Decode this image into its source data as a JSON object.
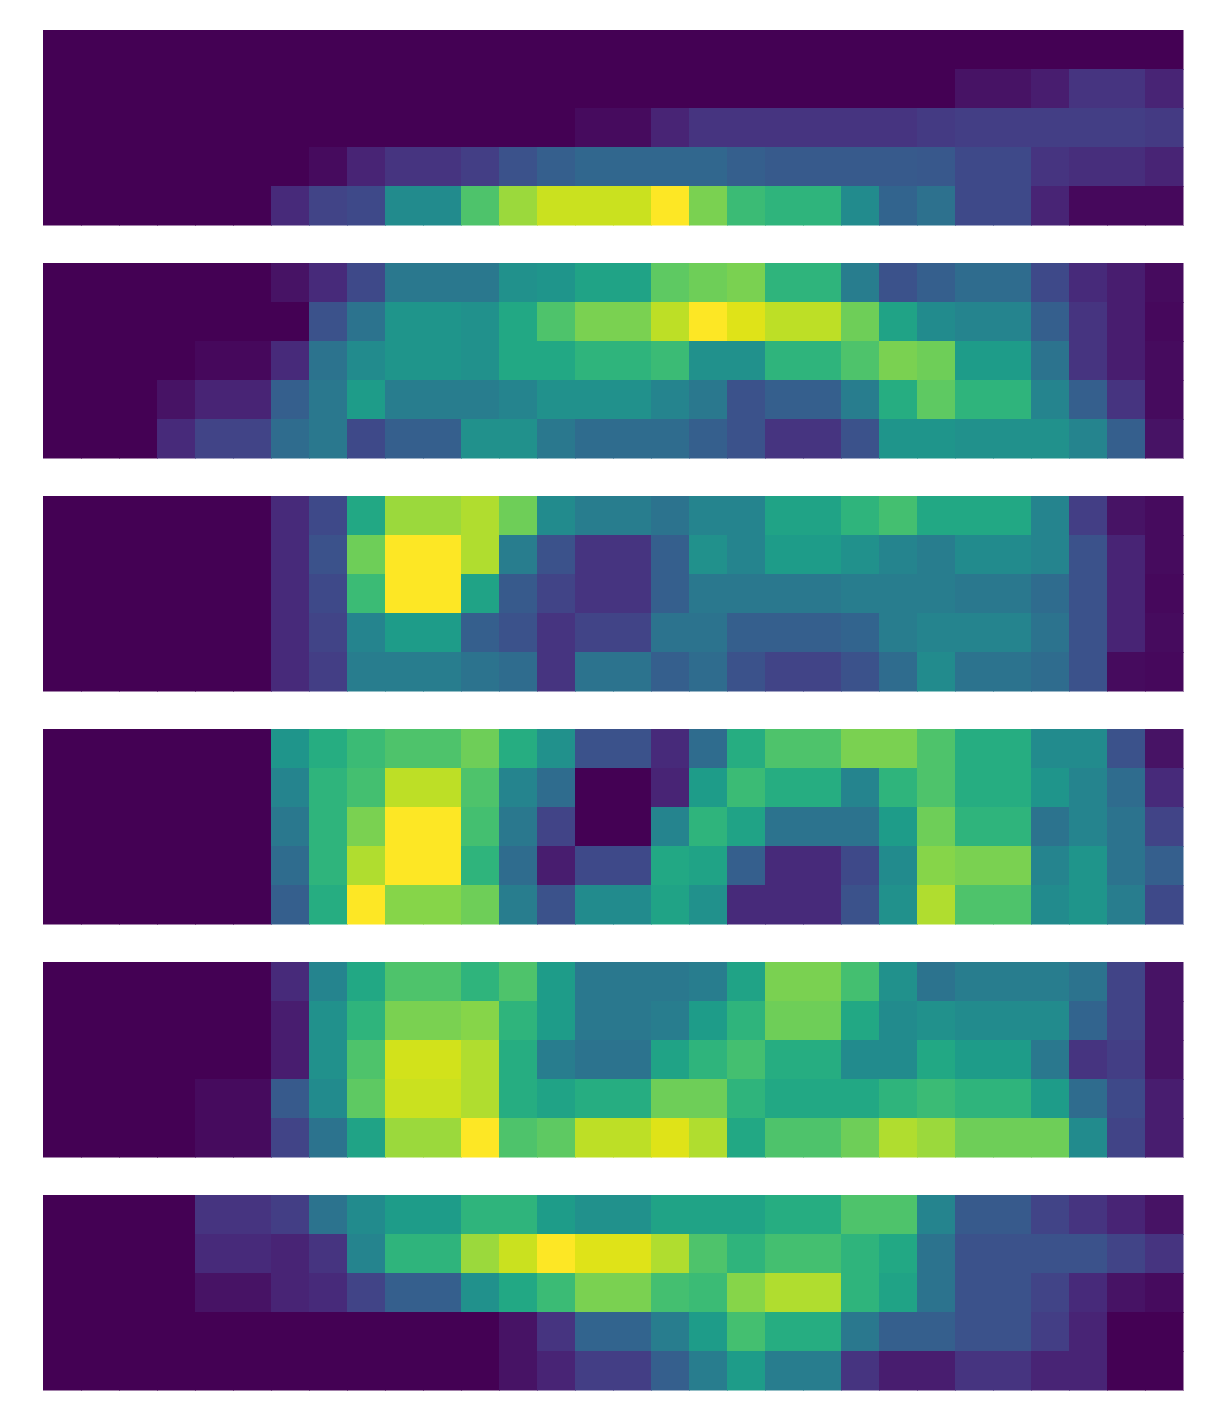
{
  "chart_data": [
    {
      "type": "heatmap",
      "color": "viridis",
      "tick_labels": false,
      "values": [
        [
          0,
          0,
          0,
          0,
          0,
          0,
          0,
          0,
          0,
          0,
          0,
          0,
          0,
          0,
          0,
          0,
          0,
          0,
          0,
          0,
          0,
          0,
          0,
          0,
          0,
          0,
          0,
          0,
          0,
          0
        ],
        [
          0,
          0,
          0,
          0,
          0,
          0,
          0,
          0,
          0,
          0,
          0,
          0,
          0,
          0,
          0,
          0,
          0,
          0,
          0,
          0,
          0,
          0,
          0,
          0,
          0.05,
          0.05,
          0.08,
          0.15,
          0.15,
          0.1
        ],
        [
          0,
          0,
          0,
          0,
          0,
          0,
          0,
          0,
          0,
          0,
          0,
          0,
          0,
          0,
          0.03,
          0.03,
          0.1,
          0.15,
          0.15,
          0.15,
          0.15,
          0.15,
          0.15,
          0.17,
          0.18,
          0.18,
          0.18,
          0.18,
          0.18,
          0.17
        ],
        [
          0,
          0,
          0,
          0,
          0,
          0,
          0,
          0.03,
          0.1,
          0.15,
          0.15,
          0.18,
          0.25,
          0.3,
          0.33,
          0.33,
          0.33,
          0.33,
          0.3,
          0.28,
          0.28,
          0.28,
          0.28,
          0.27,
          0.22,
          0.22,
          0.15,
          0.13,
          0.13,
          0.1
        ],
        [
          0,
          0,
          0,
          0,
          0,
          0,
          0.12,
          0.2,
          0.22,
          0.48,
          0.48,
          0.72,
          0.85,
          0.92,
          0.92,
          0.92,
          1,
          0.8,
          0.68,
          0.65,
          0.65,
          0.48,
          0.32,
          0.37,
          0.22,
          0.22,
          0.1,
          0.02,
          0.02,
          0.02
        ]
      ]
    },
    {
      "type": "heatmap",
      "color": "viridis",
      "tick_labels": false,
      "values": [
        [
          0,
          0,
          0,
          0,
          0,
          0,
          0.05,
          0.12,
          0.22,
          0.4,
          0.4,
          0.4,
          0.5,
          0.52,
          0.58,
          0.58,
          0.75,
          0.78,
          0.8,
          0.65,
          0.65,
          0.42,
          0.25,
          0.3,
          0.35,
          0.35,
          0.22,
          0.12,
          0.08,
          0.03
        ],
        [
          0,
          0,
          0,
          0,
          0,
          0,
          0,
          0.25,
          0.38,
          0.52,
          0.52,
          0.5,
          0.6,
          0.72,
          0.8,
          0.8,
          0.9,
          1,
          0.95,
          0.9,
          0.9,
          0.78,
          0.58,
          0.48,
          0.45,
          0.45,
          0.3,
          0.15,
          0.08,
          0.02
        ],
        [
          0,
          0,
          0,
          0,
          0.02,
          0.02,
          0.12,
          0.38,
          0.48,
          0.52,
          0.52,
          0.5,
          0.6,
          0.6,
          0.65,
          0.65,
          0.68,
          0.5,
          0.5,
          0.65,
          0.65,
          0.72,
          0.8,
          0.78,
          0.55,
          0.55,
          0.38,
          0.15,
          0.08,
          0.03
        ],
        [
          0,
          0,
          0,
          0.05,
          0.1,
          0.1,
          0.3,
          0.4,
          0.55,
          0.42,
          0.42,
          0.42,
          0.45,
          0.5,
          0.5,
          0.5,
          0.45,
          0.4,
          0.25,
          0.3,
          0.3,
          0.42,
          0.62,
          0.75,
          0.65,
          0.65,
          0.45,
          0.3,
          0.15,
          0.03
        ],
        [
          0,
          0,
          0,
          0.12,
          0.2,
          0.2,
          0.35,
          0.4,
          0.22,
          0.3,
          0.3,
          0.5,
          0.5,
          0.4,
          0.35,
          0.35,
          0.35,
          0.3,
          0.25,
          0.15,
          0.15,
          0.25,
          0.52,
          0.52,
          0.5,
          0.5,
          0.5,
          0.45,
          0.3,
          0.05
        ]
      ]
    },
    {
      "type": "heatmap",
      "color": "viridis",
      "tick_labels": false,
      "values": [
        [
          0,
          0,
          0,
          0,
          0,
          0,
          0.12,
          0.22,
          0.6,
          0.85,
          0.85,
          0.88,
          0.78,
          0.48,
          0.42,
          0.42,
          0.38,
          0.45,
          0.45,
          0.58,
          0.58,
          0.65,
          0.7,
          0.6,
          0.6,
          0.6,
          0.45,
          0.18,
          0.05,
          0.03
        ],
        [
          0,
          0,
          0,
          0,
          0,
          0,
          0.12,
          0.25,
          0.78,
          1,
          1,
          0.88,
          0.42,
          0.25,
          0.15,
          0.15,
          0.3,
          0.5,
          0.45,
          0.55,
          0.55,
          0.5,
          0.45,
          0.42,
          0.48,
          0.48,
          0.45,
          0.25,
          0.1,
          0.03
        ],
        [
          0,
          0,
          0,
          0,
          0,
          0,
          0.12,
          0.22,
          0.68,
          1,
          1,
          0.58,
          0.28,
          0.2,
          0.15,
          0.15,
          0.3,
          0.4,
          0.4,
          0.4,
          0.4,
          0.42,
          0.42,
          0.42,
          0.4,
          0.4,
          0.35,
          0.25,
          0.1,
          0.02
        ],
        [
          0,
          0,
          0,
          0,
          0,
          0,
          0.12,
          0.2,
          0.45,
          0.55,
          0.55,
          0.3,
          0.25,
          0.15,
          0.2,
          0.2,
          0.38,
          0.38,
          0.3,
          0.3,
          0.3,
          0.32,
          0.42,
          0.45,
          0.45,
          0.45,
          0.38,
          0.25,
          0.1,
          0.03
        ],
        [
          0,
          0,
          0,
          0,
          0,
          0,
          0.12,
          0.18,
          0.42,
          0.42,
          0.42,
          0.38,
          0.35,
          0.15,
          0.38,
          0.38,
          0.3,
          0.35,
          0.25,
          0.2,
          0.2,
          0.25,
          0.35,
          0.48,
          0.38,
          0.38,
          0.35,
          0.25,
          0.03,
          0.02
        ]
      ]
    },
    {
      "type": "heatmap",
      "color": "viridis",
      "tick_labels": false,
      "values": [
        [
          0,
          0,
          0,
          0,
          0,
          0,
          0.52,
          0.62,
          0.68,
          0.72,
          0.72,
          0.78,
          0.62,
          0.5,
          0.25,
          0.25,
          0.12,
          0.35,
          0.62,
          0.72,
          0.72,
          0.8,
          0.8,
          0.72,
          0.62,
          0.62,
          0.48,
          0.48,
          0.25,
          0.05
        ],
        [
          0,
          0,
          0,
          0,
          0,
          0,
          0.45,
          0.65,
          0.7,
          0.9,
          0.9,
          0.72,
          0.45,
          0.35,
          0,
          0,
          0.1,
          0.55,
          0.68,
          0.62,
          0.62,
          0.45,
          0.65,
          0.72,
          0.62,
          0.62,
          0.52,
          0.45,
          0.35,
          0.12
        ],
        [
          0,
          0,
          0,
          0,
          0,
          0,
          0.4,
          0.65,
          0.8,
          1,
          1,
          0.7,
          0.4,
          0.2,
          0,
          0,
          0.45,
          0.65,
          0.58,
          0.38,
          0.38,
          0.38,
          0.55,
          0.78,
          0.65,
          0.65,
          0.38,
          0.45,
          0.38,
          0.2
        ],
        [
          0,
          0,
          0,
          0,
          0,
          0,
          0.35,
          0.65,
          0.88,
          1,
          1,
          0.65,
          0.35,
          0.08,
          0.22,
          0.22,
          0.6,
          0.58,
          0.3,
          0.12,
          0.12,
          0.22,
          0.48,
          0.82,
          0.8,
          0.8,
          0.45,
          0.52,
          0.38,
          0.3
        ],
        [
          0,
          0,
          0,
          0,
          0,
          0,
          0.3,
          0.62,
          1,
          0.82,
          0.82,
          0.78,
          0.42,
          0.25,
          0.48,
          0.48,
          0.58,
          0.5,
          0.12,
          0.12,
          0.12,
          0.25,
          0.5,
          0.88,
          0.72,
          0.72,
          0.48,
          0.52,
          0.42,
          0.22
        ]
      ]
    },
    {
      "type": "heatmap",
      "color": "viridis",
      "tick_labels": false,
      "values": [
        [
          0,
          0,
          0,
          0,
          0,
          0,
          0.12,
          0.45,
          0.6,
          0.72,
          0.72,
          0.65,
          0.72,
          0.55,
          0.4,
          0.4,
          0.4,
          0.42,
          0.58,
          0.8,
          0.8,
          0.7,
          0.5,
          0.38,
          0.42,
          0.42,
          0.42,
          0.38,
          0.2,
          0.05
        ],
        [
          0,
          0,
          0,
          0,
          0,
          0,
          0.08,
          0.5,
          0.65,
          0.8,
          0.8,
          0.82,
          0.65,
          0.55,
          0.4,
          0.4,
          0.42,
          0.55,
          0.65,
          0.78,
          0.78,
          0.6,
          0.48,
          0.5,
          0.48,
          0.48,
          0.48,
          0.32,
          0.2,
          0.05
        ],
        [
          0,
          0,
          0,
          0,
          0,
          0,
          0.08,
          0.5,
          0.72,
          0.93,
          0.93,
          0.88,
          0.62,
          0.42,
          0.38,
          0.38,
          0.58,
          0.65,
          0.7,
          0.62,
          0.62,
          0.48,
          0.48,
          0.6,
          0.55,
          0.55,
          0.4,
          0.15,
          0.18,
          0.05
        ],
        [
          0,
          0,
          0,
          0,
          0.03,
          0.03,
          0.28,
          0.48,
          0.75,
          0.92,
          0.92,
          0.88,
          0.62,
          0.58,
          0.62,
          0.62,
          0.78,
          0.78,
          0.65,
          0.6,
          0.6,
          0.6,
          0.65,
          0.68,
          0.65,
          0.65,
          0.55,
          0.35,
          0.22,
          0.08
        ],
        [
          0,
          0,
          0,
          0,
          0.03,
          0.03,
          0.2,
          0.38,
          0.58,
          0.85,
          0.85,
          1,
          0.72,
          0.75,
          0.9,
          0.9,
          0.95,
          0.88,
          0.6,
          0.72,
          0.72,
          0.78,
          0.88,
          0.85,
          0.78,
          0.78,
          0.78,
          0.48,
          0.2,
          0.08
        ]
      ]
    },
    {
      "type": "heatmap",
      "color": "viridis",
      "tick_labels": false,
      "values": [
        [
          0,
          0,
          0,
          0,
          0.15,
          0.15,
          0.18,
          0.38,
          0.48,
          0.55,
          0.55,
          0.65,
          0.65,
          0.55,
          0.5,
          0.5,
          0.58,
          0.58,
          0.58,
          0.62,
          0.62,
          0.72,
          0.72,
          0.45,
          0.28,
          0.28,
          0.2,
          0.15,
          0.1,
          0.05
        ],
        [
          0,
          0,
          0,
          0,
          0.12,
          0.12,
          0.1,
          0.15,
          0.45,
          0.65,
          0.65,
          0.85,
          0.92,
          1,
          0.95,
          0.95,
          0.88,
          0.72,
          0.65,
          0.7,
          0.7,
          0.65,
          0.6,
          0.38,
          0.25,
          0.25,
          0.25,
          0.25,
          0.2,
          0.15
        ],
        [
          0,
          0,
          0,
          0,
          0.05,
          0.05,
          0.1,
          0.12,
          0.2,
          0.3,
          0.3,
          0.5,
          0.6,
          0.68,
          0.8,
          0.8,
          0.7,
          0.68,
          0.82,
          0.88,
          0.88,
          0.65,
          0.58,
          0.38,
          0.25,
          0.25,
          0.2,
          0.12,
          0.05,
          0.03
        ],
        [
          0,
          0,
          0,
          0,
          0,
          0,
          0,
          0,
          0,
          0,
          0,
          0,
          0.05,
          0.15,
          0.32,
          0.32,
          0.42,
          0.55,
          0.7,
          0.62,
          0.62,
          0.4,
          0.3,
          0.3,
          0.25,
          0.25,
          0.18,
          0.1,
          0,
          0
        ],
        [
          0,
          0,
          0,
          0,
          0,
          0,
          0,
          0,
          0,
          0,
          0,
          0,
          0.05,
          0.1,
          0.18,
          0.18,
          0.3,
          0.42,
          0.55,
          0.42,
          0.42,
          0.15,
          0.08,
          0.08,
          0.15,
          0.15,
          0.1,
          0.1,
          0,
          0
        ]
      ]
    }
  ]
}
